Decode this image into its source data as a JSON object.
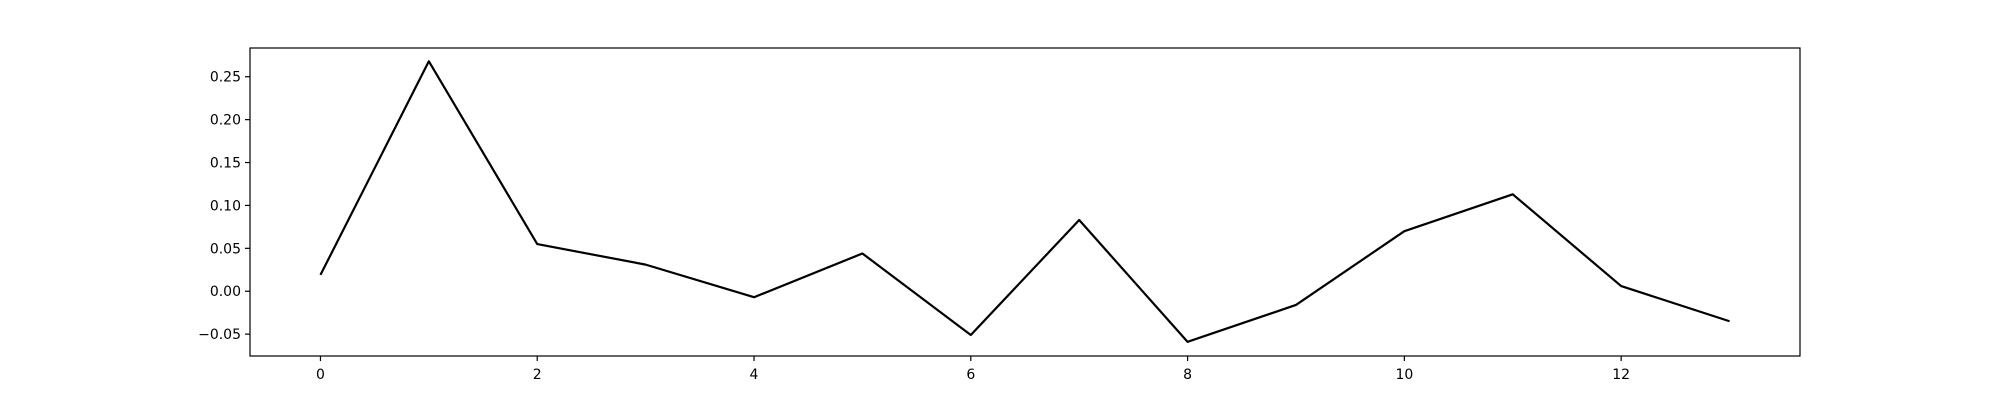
{
  "chart_data": {
    "type": "line",
    "title": "",
    "xlabel": "",
    "ylabel": "",
    "xlim": [
      -0.65,
      13.65
    ],
    "ylim": [
      -0.0755,
      0.2835
    ],
    "x_ticks": [
      0,
      2,
      4,
      6,
      8,
      10,
      12
    ],
    "x_tick_labels": [
      "0",
      "2",
      "4",
      "6",
      "8",
      "10",
      "12"
    ],
    "y_ticks": [
      -0.05,
      0.0,
      0.05,
      0.1,
      0.15,
      0.2,
      0.25
    ],
    "y_tick_labels": [
      "−0.05",
      "0.00",
      "0.05",
      "0.10",
      "0.15",
      "0.20",
      "0.25"
    ],
    "grid": false,
    "legend": "none",
    "line_color": "#000000",
    "x": [
      0,
      1,
      2,
      3,
      4,
      5,
      6,
      7,
      8,
      9,
      10,
      11,
      12,
      13
    ],
    "series": [
      {
        "values": [
          0.019,
          0.268,
          0.055,
          0.031,
          -0.007,
          0.044,
          -0.051,
          0.083,
          -0.059,
          -0.016,
          0.07,
          0.113,
          0.006,
          -0.035
        ]
      }
    ]
  }
}
